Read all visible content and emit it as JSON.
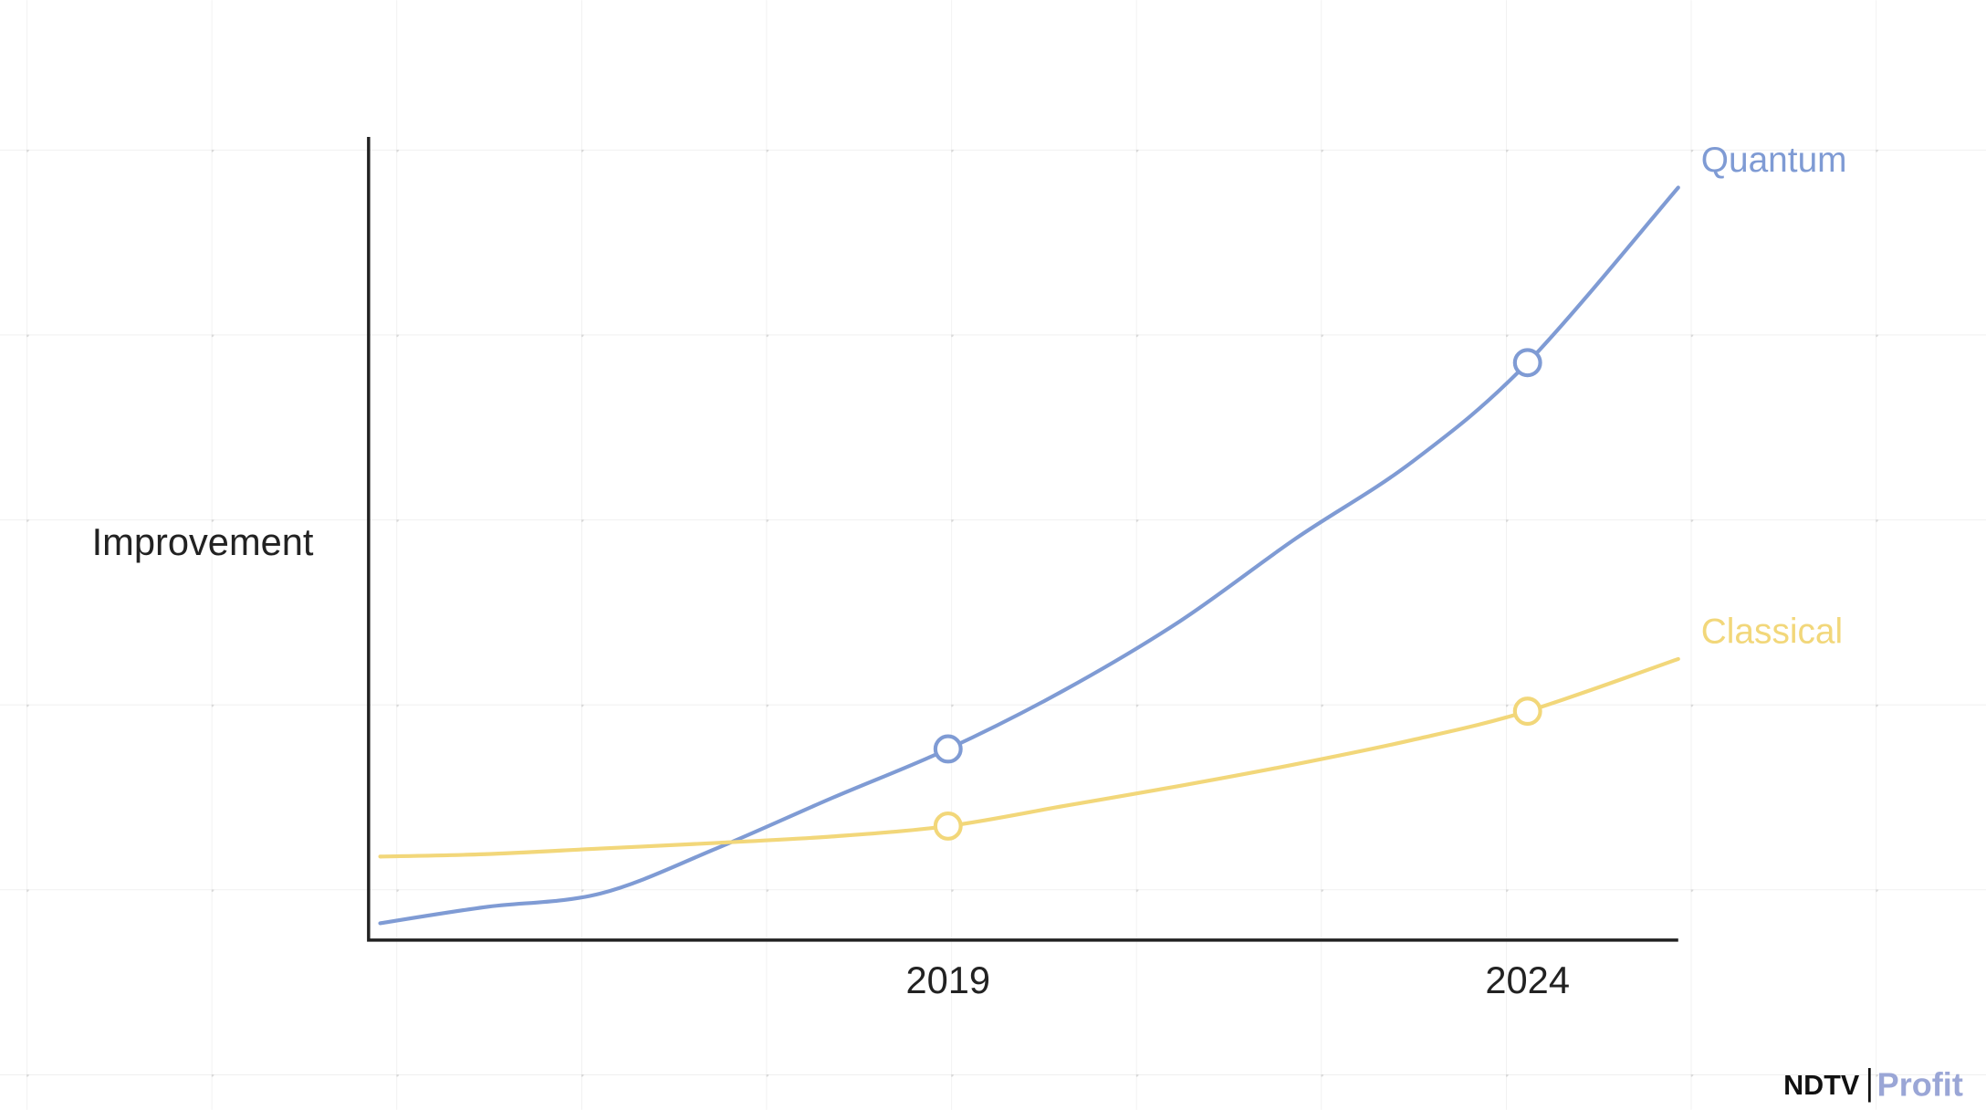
{
  "chart_data": {
    "type": "line",
    "y_label": "Improvement",
    "x": [
      2014.1,
      2015,
      2016,
      2017,
      2018,
      2019,
      2020,
      2021,
      2022,
      2023,
      2024,
      2025.3
    ],
    "xlim": [
      2014,
      2025.3
    ],
    "xticks": [
      2019,
      2024
    ],
    "ylim": [
      0,
      100
    ],
    "series": [
      {
        "name": "Quantum",
        "color": "#7f9bd4",
        "values": [
          2.1,
          4.1,
          5.8,
          11.4,
          17.7,
          23.8,
          31.1,
          39.7,
          50,
          59.5,
          71.9,
          93.7
        ]
      },
      {
        "name": "Classical",
        "color": "#f2d77a",
        "values": [
          10.4,
          10.7,
          11.4,
          12.1,
          12.9,
          14.2,
          16.7,
          19.2,
          21.9,
          24.9,
          28.5,
          35
        ]
      }
    ]
  },
  "watermark": {
    "brand": "NDTV",
    "product": "Profit"
  }
}
